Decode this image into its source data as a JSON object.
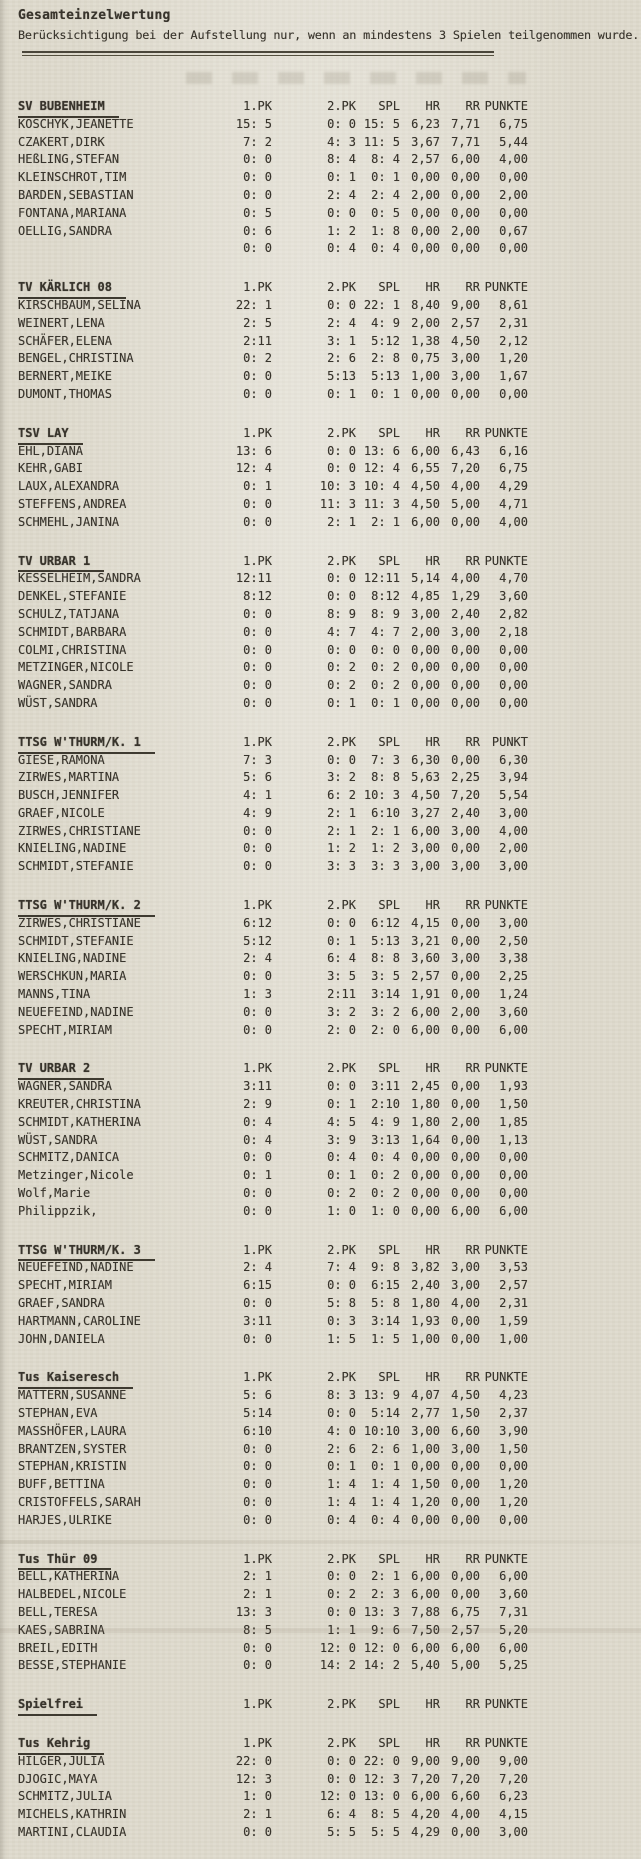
{
  "page": {
    "title": "Gesamteinzelwertung",
    "subtitle": "Berücksichtigung bei der Aufstellung nur, wenn an mindestens 3 Spielen teilgenommen wurde."
  },
  "colors": {
    "paper": "#dfdbce",
    "ink": "#38342c"
  },
  "sections": [
    {
      "team": "SV BUBENHEIM",
      "columns": [
        "1.PK",
        "2.PK",
        "SPL",
        "HR",
        "RR",
        "PUNKTE"
      ],
      "rows": [
        {
          "name": "KOSCHYK,JEANETTE",
          "values": [
            "15: 5",
            "0: 0",
            "15: 5",
            "6,23",
            "7,71",
            "6,75"
          ]
        },
        {
          "name": "CZAKERT,DIRK",
          "values": [
            "7: 2",
            "4: 3",
            "11: 5",
            "3,67",
            "7,71",
            "5,44"
          ]
        },
        {
          "name": "HEßLING,STEFAN",
          "values": [
            "0: 0",
            "8: 4",
            "8: 4",
            "2,57",
            "6,00",
            "4,00"
          ]
        },
        {
          "name": "KLEINSCHROT,TIM",
          "values": [
            "0: 0",
            "0: 1",
            "0: 1",
            "0,00",
            "0,00",
            "0,00"
          ]
        },
        {
          "name": "BARDEN,SEBASTIAN",
          "values": [
            "0: 0",
            "2: 4",
            "2: 4",
            "2,00",
            "0,00",
            "2,00"
          ]
        },
        {
          "name": "FONTANA,MARIANA",
          "values": [
            "0: 5",
            "0: 0",
            "0: 5",
            "0,00",
            "0,00",
            "0,00"
          ]
        },
        {
          "name": "OELLIG,SANDRA",
          "values": [
            "0: 6",
            "1: 2",
            "1: 8",
            "0,00",
            "2,00",
            "0,67"
          ]
        },
        {
          "name": "",
          "values": [
            "0: 0",
            "0: 4",
            "0: 4",
            "0,00",
            "0,00",
            "0,00"
          ]
        }
      ]
    },
    {
      "team": "TV KÄRLICH 08",
      "columns": [
        "1.PK",
        "2.PK",
        "SPL",
        "HR",
        "RR",
        "PUNKTE"
      ],
      "rows": [
        {
          "name": "KIRSCHBAUM,SELINA",
          "values": [
            "22: 1",
            "0: 0",
            "22: 1",
            "8,40",
            "9,00",
            "8,61"
          ]
        },
        {
          "name": "WEINERT,LENA",
          "values": [
            "2: 5",
            "2: 4",
            "4: 9",
            "2,00",
            "2,57",
            "2,31"
          ]
        },
        {
          "name": "SCHÄFER,ELENA",
          "values": [
            "2:11",
            "3: 1",
            "5:12",
            "1,38",
            "4,50",
            "2,12"
          ]
        },
        {
          "name": "BENGEL,CHRISTINA",
          "values": [
            "0: 2",
            "2: 6",
            "2: 8",
            "0,75",
            "3,00",
            "1,20"
          ]
        },
        {
          "name": "BERNERT,MEIKE",
          "values": [
            "0: 0",
            "5:13",
            "5:13",
            "1,00",
            "3,00",
            "1,67"
          ]
        },
        {
          "name": "DUMONT,THOMAS",
          "values": [
            "0: 0",
            "0: 1",
            "0: 1",
            "0,00",
            "0,00",
            "0,00"
          ]
        }
      ]
    },
    {
      "team": "TSV LAY",
      "columns": [
        "1.PK",
        "2.PK",
        "SPL",
        "HR",
        "RR",
        "PUNKTE"
      ],
      "rows": [
        {
          "name": "EHL,DIANA",
          "values": [
            "13: 6",
            "0: 0",
            "13: 6",
            "6,00",
            "6,43",
            "6,16"
          ]
        },
        {
          "name": "KEHR,GABI",
          "values": [
            "12: 4",
            "0: 0",
            "12: 4",
            "6,55",
            "7,20",
            "6,75"
          ]
        },
        {
          "name": "LAUX,ALEXANDRA",
          "values": [
            "0: 1",
            "10: 3",
            "10: 4",
            "4,50",
            "4,00",
            "4,29"
          ]
        },
        {
          "name": "STEFFENS,ANDREA",
          "values": [
            "0: 0",
            "11: 3",
            "11: 3",
            "4,50",
            "5,00",
            "4,71"
          ]
        },
        {
          "name": "SCHMEHL,JANINA",
          "values": [
            "0: 0",
            "2: 1",
            "2: 1",
            "6,00",
            "0,00",
            "4,00"
          ]
        }
      ]
    },
    {
      "team": "TV URBAR 1",
      "columns": [
        "1.PK",
        "2.PK",
        "SPL",
        "HR",
        "RR",
        "PUNKTE"
      ],
      "rows": [
        {
          "name": "KESSELHEIM,SANDRA",
          "values": [
            "12:11",
            "0: 0",
            "12:11",
            "5,14",
            "4,00",
            "4,70"
          ]
        },
        {
          "name": "DENKEL,STEFANIE",
          "values": [
            "8:12",
            "0: 0",
            "8:12",
            "4,85",
            "1,29",
            "3,60"
          ]
        },
        {
          "name": "SCHULZ,TATJANA",
          "values": [
            "0: 0",
            "8: 9",
            "8: 9",
            "3,00",
            "2,40",
            "2,82"
          ]
        },
        {
          "name": "SCHMIDT,BARBARA",
          "values": [
            "0: 0",
            "4: 7",
            "4: 7",
            "2,00",
            "3,00",
            "2,18"
          ]
        },
        {
          "name": "COLMI,CHRISTINA",
          "values": [
            "0: 0",
            "0: 0",
            "0: 0",
            "0,00",
            "0,00",
            "0,00"
          ]
        },
        {
          "name": "METZINGER,NICOLE",
          "values": [
            "0: 0",
            "0: 2",
            "0: 2",
            "0,00",
            "0,00",
            "0,00"
          ]
        },
        {
          "name": "WAGNER,SANDRA",
          "values": [
            "0: 0",
            "0: 2",
            "0: 2",
            "0,00",
            "0,00",
            "0,00"
          ]
        },
        {
          "name": "WÜST,SANDRA",
          "values": [
            "0: 0",
            "0: 1",
            "0: 1",
            "0,00",
            "0,00",
            "0,00"
          ]
        }
      ]
    },
    {
      "team": "TTSG W'THURM/K. 1",
      "columns": [
        "1.PK",
        "2.PK",
        "SPL",
        "HR",
        "RR",
        "PUNKT"
      ],
      "rows": [
        {
          "name": "GIESE,RAMONA",
          "values": [
            "7: 3",
            "0: 0",
            "7: 3",
            "6,30",
            "0,00",
            "6,30"
          ]
        },
        {
          "name": "ZIRWES,MARTINA",
          "values": [
            "5: 6",
            "3: 2",
            "8: 8",
            "5,63",
            "2,25",
            "3,94"
          ]
        },
        {
          "name": "BUSCH,JENNIFER",
          "values": [
            "4: 1",
            "6: 2",
            "10: 3",
            "4,50",
            "7,20",
            "5,54"
          ]
        },
        {
          "name": "GRAEF,NICOLE",
          "values": [
            "4: 9",
            "2: 1",
            "6:10",
            "3,27",
            "2,40",
            "3,00"
          ]
        },
        {
          "name": "ZIRWES,CHRISTIANE",
          "values": [
            "0: 0",
            "2: 1",
            "2: 1",
            "6,00",
            "3,00",
            "4,00"
          ]
        },
        {
          "name": "KNIELING,NADINE",
          "values": [
            "0: 0",
            "1: 2",
            "1: 2",
            "3,00",
            "0,00",
            "2,00"
          ]
        },
        {
          "name": "SCHMIDT,STEFANIE",
          "values": [
            "0: 0",
            "3: 3",
            "3: 3",
            "3,00",
            "3,00",
            "3,00"
          ]
        }
      ]
    },
    {
      "team": "TTSG W'THURM/K. 2",
      "columns": [
        "1.PK",
        "2.PK",
        "SPL",
        "HR",
        "RR",
        "PUNKTE"
      ],
      "rows": [
        {
          "name": "ZIRWES,CHRISTIANE",
          "values": [
            "6:12",
            "0: 0",
            "6:12",
            "4,15",
            "0,00",
            "3,00"
          ]
        },
        {
          "name": "SCHMIDT,STEFANIE",
          "values": [
            "5:12",
            "0: 1",
            "5:13",
            "3,21",
            "0,00",
            "2,50"
          ]
        },
        {
          "name": "KNIELING,NADINE",
          "values": [
            "2: 4",
            "6: 4",
            "8: 8",
            "3,60",
            "3,00",
            "3,38"
          ]
        },
        {
          "name": "WERSCHKUN,MARIA",
          "values": [
            "0: 0",
            "3: 5",
            "3: 5",
            "2,57",
            "0,00",
            "2,25"
          ]
        },
        {
          "name": "MANNS,TINA",
          "values": [
            "1: 3",
            "2:11",
            "3:14",
            "1,91",
            "0,00",
            "1,24"
          ]
        },
        {
          "name": "NEUEFEIND,NADINE",
          "values": [
            "0: 0",
            "3: 2",
            "3: 2",
            "6,00",
            "2,00",
            "3,60"
          ]
        },
        {
          "name": "SPECHT,MIRIAM",
          "values": [
            "0: 0",
            "2: 0",
            "2: 0",
            "6,00",
            "0,00",
            "6,00"
          ]
        }
      ]
    },
    {
      "team": "TV URBAR 2",
      "columns": [
        "1.PK",
        "2.PK",
        "SPL",
        "HR",
        "RR",
        "PUNKTE"
      ],
      "rows": [
        {
          "name": "WAGNER,SANDRA",
          "values": [
            "3:11",
            "0: 0",
            "3:11",
            "2,45",
            "0,00",
            "1,93"
          ]
        },
        {
          "name": "KREUTER,CHRISTINA",
          "values": [
            "2: 9",
            "0: 1",
            "2:10",
            "1,80",
            "0,00",
            "1,50"
          ]
        },
        {
          "name": "SCHMIDT,KATHERINA",
          "values": [
            "0: 4",
            "4: 5",
            "4: 9",
            "1,80",
            "2,00",
            "1,85"
          ]
        },
        {
          "name": "WÜST,SANDRA",
          "values": [
            "0: 4",
            "3: 9",
            "3:13",
            "1,64",
            "0,00",
            "1,13"
          ]
        },
        {
          "name": "SCHMITZ,DANICA",
          "values": [
            "0: 0",
            "0: 4",
            "0: 4",
            "0,00",
            "0,00",
            "0,00"
          ]
        },
        {
          "name": "Metzinger,Nicole",
          "values": [
            "0: 1",
            "0: 1",
            "0: 2",
            "0,00",
            "0,00",
            "0,00"
          ]
        },
        {
          "name": "Wolf,Marie",
          "values": [
            "0: 0",
            "0: 2",
            "0: 2",
            "0,00",
            "0,00",
            "0,00"
          ]
        },
        {
          "name": "Philippzik,",
          "values": [
            "0: 0",
            "1: 0",
            "1: 0",
            "0,00",
            "6,00",
            "6,00"
          ]
        }
      ]
    },
    {
      "team": "TTSG W'THURM/K. 3",
      "columns": [
        "1.PK",
        "2.PK",
        "SPL",
        "HR",
        "RR",
        "PUNKTE"
      ],
      "rows": [
        {
          "name": "NEUEFEIND,NADINE",
          "values": [
            "2: 4",
            "7: 4",
            "9: 8",
            "3,82",
            "3,00",
            "3,53"
          ]
        },
        {
          "name": "SPECHT,MIRIAM",
          "values": [
            "6:15",
            "0: 0",
            "6:15",
            "2,40",
            "3,00",
            "2,57"
          ]
        },
        {
          "name": "GRAEF,SANDRA",
          "values": [
            "0: 0",
            "5: 8",
            "5: 8",
            "1,80",
            "4,00",
            "2,31"
          ]
        },
        {
          "name": "HARTMANN,CAROLINE",
          "values": [
            "3:11",
            "0: 3",
            "3:14",
            "1,93",
            "0,00",
            "1,59"
          ]
        },
        {
          "name": "JOHN,DANIELA",
          "values": [
            "0: 0",
            "1: 5",
            "1: 5",
            "1,00",
            "0,00",
            "1,00"
          ]
        }
      ]
    },
    {
      "team": "Tus Kaiseresch",
      "columns": [
        "1.PK",
        "2.PK",
        "SPL",
        "HR",
        "RR",
        "PUNKTE"
      ],
      "rows": [
        {
          "name": "MATTERN,SUSANNE",
          "values": [
            "5: 6",
            "8: 3",
            "13: 9",
            "4,07",
            "4,50",
            "4,23"
          ]
        },
        {
          "name": "STEPHAN,EVA",
          "values": [
            "5:14",
            "0: 0",
            "5:14",
            "2,77",
            "1,50",
            "2,37"
          ]
        },
        {
          "name": "MASSHÖFER,LAURA",
          "values": [
            "6:10",
            "4: 0",
            "10:10",
            "3,00",
            "6,60",
            "3,90"
          ]
        },
        {
          "name": "BRANTZEN,SYSTER",
          "values": [
            "0: 0",
            "2: 6",
            "2: 6",
            "1,00",
            "3,00",
            "1,50"
          ]
        },
        {
          "name": "STEPHAN,KRISTIN",
          "values": [
            "0: 0",
            "0: 1",
            "0: 1",
            "0,00",
            "0,00",
            "0,00"
          ]
        },
        {
          "name": "BUFF,BETTINA",
          "values": [
            "0: 0",
            "1: 4",
            "1: 4",
            "1,50",
            "0,00",
            "1,20"
          ]
        },
        {
          "name": "CRISTOFFELS,SARAH",
          "values": [
            "0: 0",
            "1: 4",
            "1: 4",
            "1,20",
            "0,00",
            "1,20"
          ]
        },
        {
          "name": "HARJES,ULRIKE",
          "values": [
            "0: 0",
            "0: 4",
            "0: 4",
            "0,00",
            "0,00",
            "0,00"
          ]
        }
      ]
    },
    {
      "team": "Tus Thür 09",
      "columns": [
        "1.PK",
        "2.PK",
        "SPL",
        "HR",
        "RR",
        "PUNKTE"
      ],
      "rows": [
        {
          "name": "BELL,KATHERINA",
          "values": [
            "2: 1",
            "0: 0",
            "2: 1",
            "6,00",
            "0,00",
            "6,00"
          ]
        },
        {
          "name": "HALBEDEL,NICOLE",
          "values": [
            "2: 1",
            "0: 2",
            "2: 3",
            "6,00",
            "0,00",
            "3,60"
          ]
        },
        {
          "name": "BELL,TERESA",
          "values": [
            "13: 3",
            "0: 0",
            "13: 3",
            "7,88",
            "6,75",
            "7,31"
          ]
        },
        {
          "name": "KAES,SABRINA",
          "values": [
            "8: 5",
            "1: 1",
            "9: 6",
            "7,50",
            "2,57",
            "5,20"
          ]
        },
        {
          "name": "BREIL,EDITH",
          "values": [
            "0: 0",
            "12: 0",
            "12: 0",
            "6,00",
            "6,00",
            "6,00"
          ]
        },
        {
          "name": "BESSE,STEPHANIE",
          "values": [
            "0: 0",
            "14: 2",
            "14: 2",
            "5,40",
            "5,00",
            "5,25"
          ]
        }
      ]
    },
    {
      "team": "Spielfrei",
      "columns": [
        "1.PK",
        "2.PK",
        "SPL",
        "HR",
        "RR",
        "PUNKTE"
      ],
      "rows": []
    },
    {
      "team": "Tus Kehrig",
      "columns": [
        "1.PK",
        "2.PK",
        "SPL",
        "HR",
        "RR",
        "PUNKTE"
      ],
      "rows": [
        {
          "name": "HILGER,JULIA",
          "values": [
            "22: 0",
            "0: 0",
            "22: 0",
            "9,00",
            "9,00",
            "9,00"
          ]
        },
        {
          "name": "DJOGIC,MAYA",
          "values": [
            "12: 3",
            "0: 0",
            "12: 3",
            "7,20",
            "7,20",
            "7,20"
          ]
        },
        {
          "name": "SCHMITZ,JULIA",
          "values": [
            "1: 0",
            "12: 0",
            "13: 0",
            "6,00",
            "6,60",
            "6,23"
          ]
        },
        {
          "name": "MICHELS,KATHRIN",
          "values": [
            "2: 1",
            "6: 4",
            "8: 5",
            "4,20",
            "4,00",
            "4,15"
          ]
        },
        {
          "name": "MARTINI,CLAUDIA",
          "values": [
            "0: 0",
            "5: 5",
            "5: 5",
            "4,29",
            "0,00",
            "3,00"
          ]
        }
      ]
    }
  ]
}
